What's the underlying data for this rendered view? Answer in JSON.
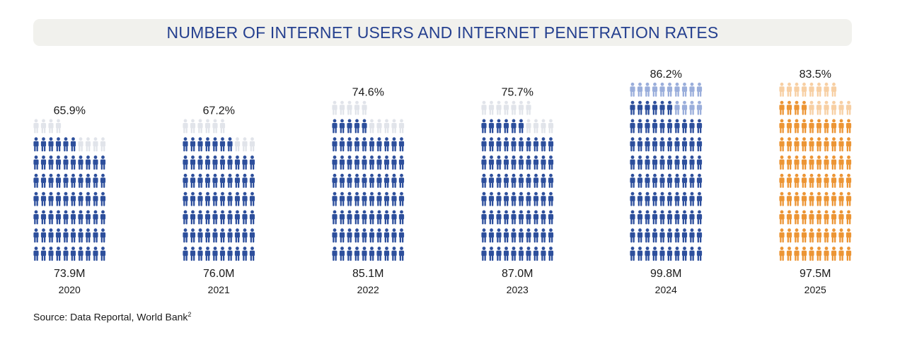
{
  "chart_data": {
    "type": "pictograph",
    "title": "NUMBER OF INTERNET USERS AND INTERNET PENETRATION RATES",
    "unit_icon": "person-icon",
    "icons_per_full_column": 100,
    "categories": [
      "2020",
      "2021",
      "2022",
      "2023",
      "2024",
      "2025"
    ],
    "users": [
      "73.9M",
      "76.0M",
      "85.1M",
      "87.0M",
      "99.8M",
      "97.5M"
    ],
    "users_millions": [
      73.9,
      76.0,
      85.1,
      87.0,
      99.8,
      97.5
    ],
    "penetration_rate": [
      "65.9%",
      "67.2%",
      "74.6%",
      "75.7%",
      "86.2%",
      "83.5%"
    ],
    "penetration_values": [
      65.9,
      67.2,
      74.6,
      75.7,
      86.2,
      83.5
    ],
    "filled_icons": [
      66,
      67,
      75,
      76,
      86,
      84
    ],
    "total_icons": [
      74,
      76,
      85,
      87,
      100,
      98
    ],
    "status": [
      "actual",
      "actual",
      "actual",
      "actual",
      "actual",
      "forecast"
    ]
  },
  "colors": {
    "title": "#25408f",
    "title_bg": "#f1f1ed",
    "actual_filled": "#2d4f9c",
    "actual_empty": "#e1e4ea",
    "emphasis_empty": "#9aaedb",
    "forecast_filled": "#ec9535",
    "forecast_empty": "#f7cfa3"
  },
  "source": {
    "text": "Source: Data Reportal, World Bank",
    "footnote": "2"
  }
}
